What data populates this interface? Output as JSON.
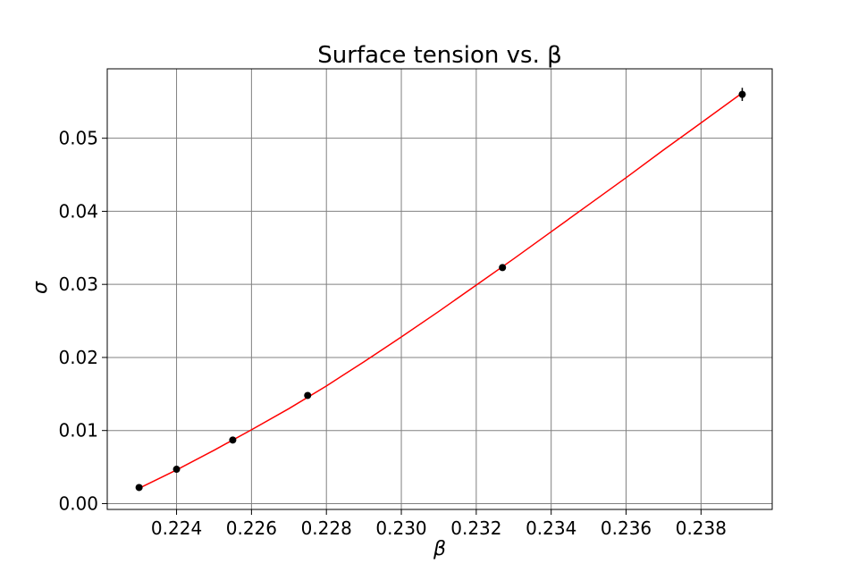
{
  "chart_data": {
    "type": "scatter",
    "title": "Surface tension vs. β",
    "xlabel": "β",
    "ylabel": "σ",
    "xlim": [
      0.22215,
      0.2399
    ],
    "ylim": [
      -0.0008,
      0.0595
    ],
    "x_ticks": [
      0.224,
      0.226,
      0.228,
      0.23,
      0.232,
      0.234,
      0.236,
      0.238
    ],
    "x_tick_labels": [
      "0.224",
      "0.226",
      "0.228",
      "0.230",
      "0.232",
      "0.234",
      "0.236",
      "0.238"
    ],
    "y_ticks": [
      0.0,
      0.01,
      0.02,
      0.03,
      0.04,
      0.05
    ],
    "y_tick_labels": [
      "0.00",
      "0.01",
      "0.02",
      "0.03",
      "0.04",
      "0.05"
    ],
    "grid": true,
    "series": [
      {
        "kind": "errorbar",
        "color": "#000000",
        "x": [
          0.223,
          0.224,
          0.2255,
          0.2275,
          0.2327,
          0.2391
        ],
        "y": [
          0.0022,
          0.0047,
          0.0087,
          0.0148,
          0.0323,
          0.056
        ],
        "yerr": [
          0.0001,
          0.0001,
          0.0001,
          0.0002,
          0.0003,
          0.0009
        ]
      },
      {
        "kind": "fit-line",
        "color": "#ff0000",
        "x": [
          0.223,
          0.224,
          0.225,
          0.226,
          0.227,
          0.228,
          0.229,
          0.23,
          0.231,
          0.232,
          0.233,
          0.234,
          0.235,
          0.236,
          0.237,
          0.238,
          0.2391
        ],
        "y": [
          0.0021,
          0.0046,
          0.0073,
          0.0101,
          0.013,
          0.0161,
          0.0194,
          0.0228,
          0.0263,
          0.0299,
          0.0335,
          0.0372,
          0.0409,
          0.0446,
          0.0484,
          0.0521,
          0.0562
        ]
      }
    ]
  }
}
